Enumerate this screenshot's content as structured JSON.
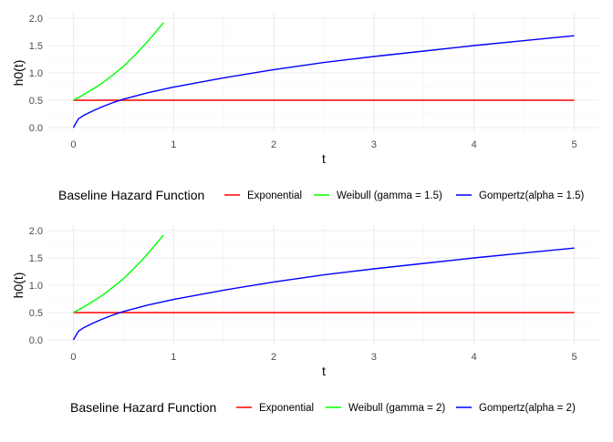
{
  "chart_data": [
    {
      "type": "line",
      "xlabel": "t",
      "ylabel": "h0(t)",
      "xlim": [
        -0.25,
        5.25
      ],
      "ylim": [
        -0.1,
        2.1
      ],
      "x_ticks": [
        "0",
        "1",
        "2",
        "3",
        "4",
        "5"
      ],
      "y_ticks": [
        "0.0",
        "0.5",
        "1.0",
        "1.5",
        "2.0"
      ],
      "grid": true,
      "legend_title": "Baseline Hazard Function",
      "legend_position": "bottom",
      "series": [
        {
          "name": "Exponential",
          "color": "#ff0000",
          "x": [
            0,
            5
          ],
          "y": [
            0.5,
            0.5
          ]
        },
        {
          "name": "Weibull (gamma = 1.5)",
          "color": "#00ff00",
          "x": [
            0,
            0.1,
            0.2,
            0.3,
            0.4,
            0.5,
            0.6,
            0.7,
            0.8,
            0.9
          ],
          "y": [
            0.5,
            0.6,
            0.71,
            0.83,
            0.97,
            1.12,
            1.3,
            1.49,
            1.7,
            1.92
          ]
        },
        {
          "name": "Gompertz(alpha = 1.5)",
          "color": "#0000ff",
          "x": [
            0,
            0.05,
            0.1,
            0.2,
            0.3,
            0.4,
            0.5,
            0.75,
            1,
            1.5,
            2,
            2.5,
            3,
            3.5,
            4,
            4.5,
            5
          ],
          "y": [
            0,
            0.16,
            0.22,
            0.31,
            0.39,
            0.46,
            0.52,
            0.64,
            0.74,
            0.91,
            1.06,
            1.19,
            1.3,
            1.4,
            1.5,
            1.59,
            1.68
          ]
        }
      ]
    },
    {
      "type": "line",
      "xlabel": "t",
      "ylabel": "h0(t)",
      "xlim": [
        -0.25,
        5.25
      ],
      "ylim": [
        -0.1,
        2.1
      ],
      "x_ticks": [
        "0",
        "1",
        "2",
        "3",
        "4",
        "5"
      ],
      "y_ticks": [
        "0.0",
        "0.5",
        "1.0",
        "1.5",
        "2.0"
      ],
      "grid": true,
      "legend_title": "Baseline Hazard Function",
      "legend_position": "bottom",
      "series": [
        {
          "name": "Exponential",
          "color": "#ff0000",
          "x": [
            0,
            5
          ],
          "y": [
            0.5,
            0.5
          ]
        },
        {
          "name": "Weibull (gamma = 2)",
          "color": "#00ff00",
          "x": [
            0,
            0.1,
            0.2,
            0.3,
            0.4,
            0.5,
            0.6,
            0.7,
            0.8,
            0.9
          ],
          "y": [
            0.5,
            0.6,
            0.71,
            0.83,
            0.97,
            1.12,
            1.3,
            1.49,
            1.7,
            1.92
          ]
        },
        {
          "name": "Gompertz(alpha = 2)",
          "color": "#0000ff",
          "x": [
            0,
            0.05,
            0.1,
            0.2,
            0.3,
            0.4,
            0.5,
            0.75,
            1,
            1.5,
            2,
            2.5,
            3,
            3.5,
            4,
            4.5,
            5
          ],
          "y": [
            0,
            0.16,
            0.22,
            0.31,
            0.39,
            0.46,
            0.52,
            0.64,
            0.74,
            0.91,
            1.06,
            1.19,
            1.3,
            1.4,
            1.5,
            1.59,
            1.68
          ]
        }
      ]
    }
  ]
}
